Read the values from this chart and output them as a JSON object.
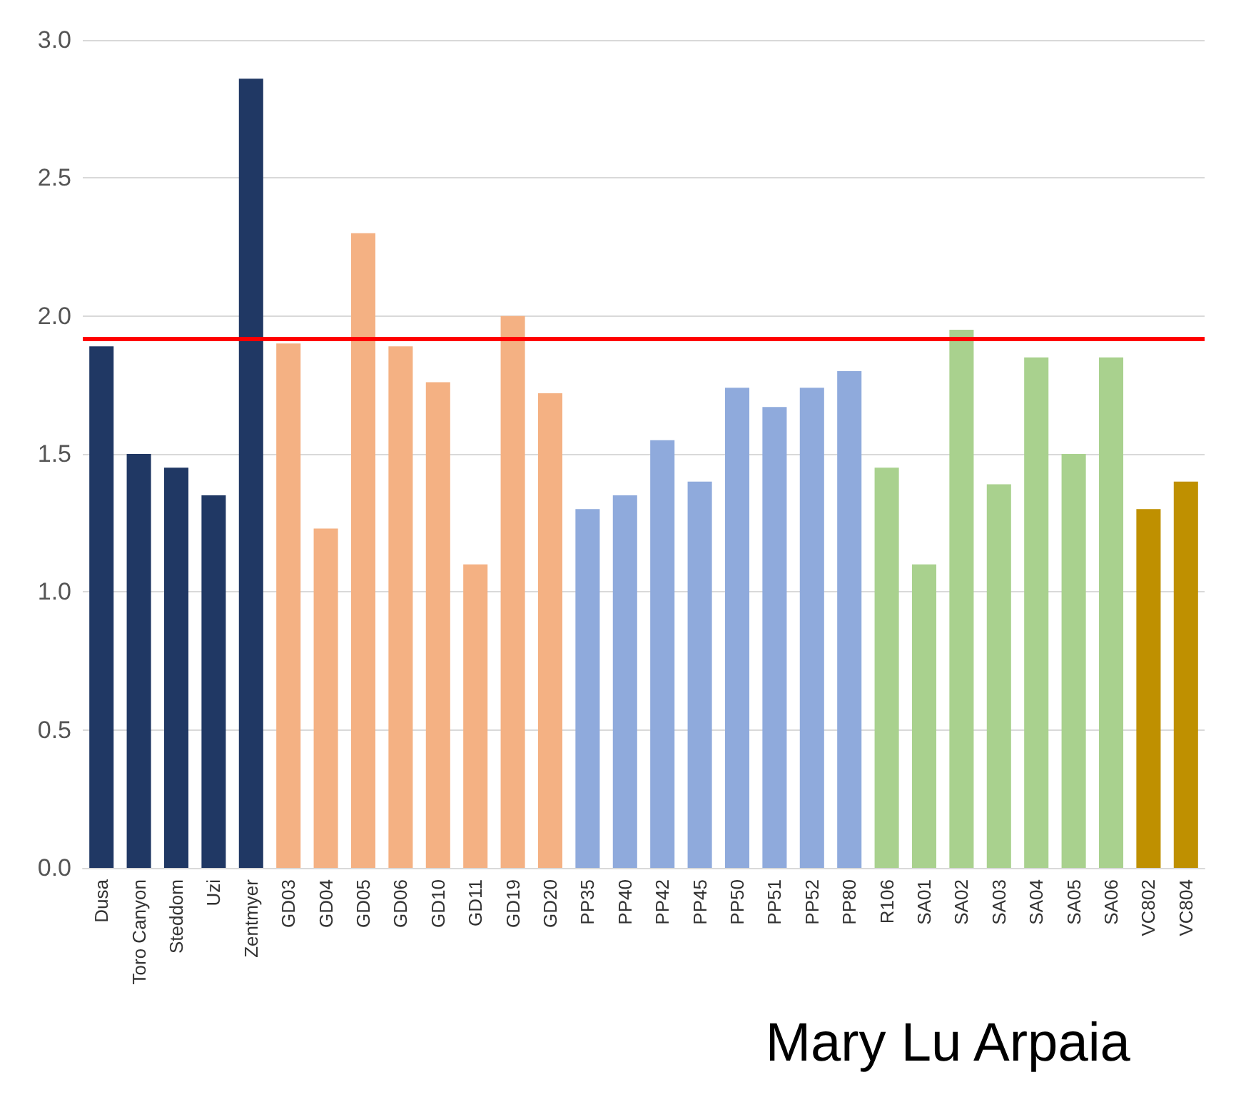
{
  "chart_data": {
    "type": "bar",
    "categories": [
      "Dusa",
      "Toro Canyon",
      "Steddom",
      "Uzi",
      "Zentmyer",
      "GD03",
      "GD04",
      "GD05",
      "GD06",
      "GD10",
      "GD11",
      "GD19",
      "GD20",
      "PP35",
      "PP40",
      "PP42",
      "PP45",
      "PP50",
      "PP51",
      "PP52",
      "PP80",
      "R106",
      "SA01",
      "SA02",
      "SA03",
      "SA04",
      "SA05",
      "SA06",
      "VC802",
      "VC804"
    ],
    "values": [
      1.89,
      1.5,
      1.45,
      1.35,
      2.86,
      1.9,
      1.23,
      2.3,
      1.89,
      1.76,
      1.1,
      2.0,
      1.72,
      1.3,
      1.35,
      1.55,
      1.4,
      1.74,
      1.67,
      1.74,
      1.8,
      1.45,
      1.1,
      1.95,
      1.39,
      1.85,
      1.5,
      1.85,
      1.3,
      1.4
    ],
    "colors": [
      "#203864",
      "#203864",
      "#203864",
      "#203864",
      "#203864",
      "#f4b183",
      "#f4b183",
      "#f4b183",
      "#f4b183",
      "#f4b183",
      "#f4b183",
      "#f4b183",
      "#f4b183",
      "#8faadc",
      "#8faadc",
      "#8faadc",
      "#8faadc",
      "#8faadc",
      "#8faadc",
      "#8faadc",
      "#8faadc",
      "#a9d18e",
      "#a9d18e",
      "#a9d18e",
      "#a9d18e",
      "#a9d18e",
      "#a9d18e",
      "#a9d18e",
      "#bf9000",
      "#bf9000"
    ],
    "ylim": [
      0,
      3
    ],
    "yticks": [
      {
        "value": 0,
        "label": "0.0"
      },
      {
        "value": 0.5,
        "label": "0.5"
      },
      {
        "value": 1,
        "label": "1.0"
      },
      {
        "value": 1.5,
        "label": "1.5"
      },
      {
        "value": 2,
        "label": "2.0"
      },
      {
        "value": 2.5,
        "label": "2.5"
      },
      {
        "value": 3,
        "label": "3.0"
      }
    ],
    "ref_lines": [
      {
        "axis": "y",
        "value": 1.92,
        "color": "#ff0000"
      }
    ],
    "grid": "y",
    "annotations": [
      "Mary Lu Arpaia"
    ]
  }
}
